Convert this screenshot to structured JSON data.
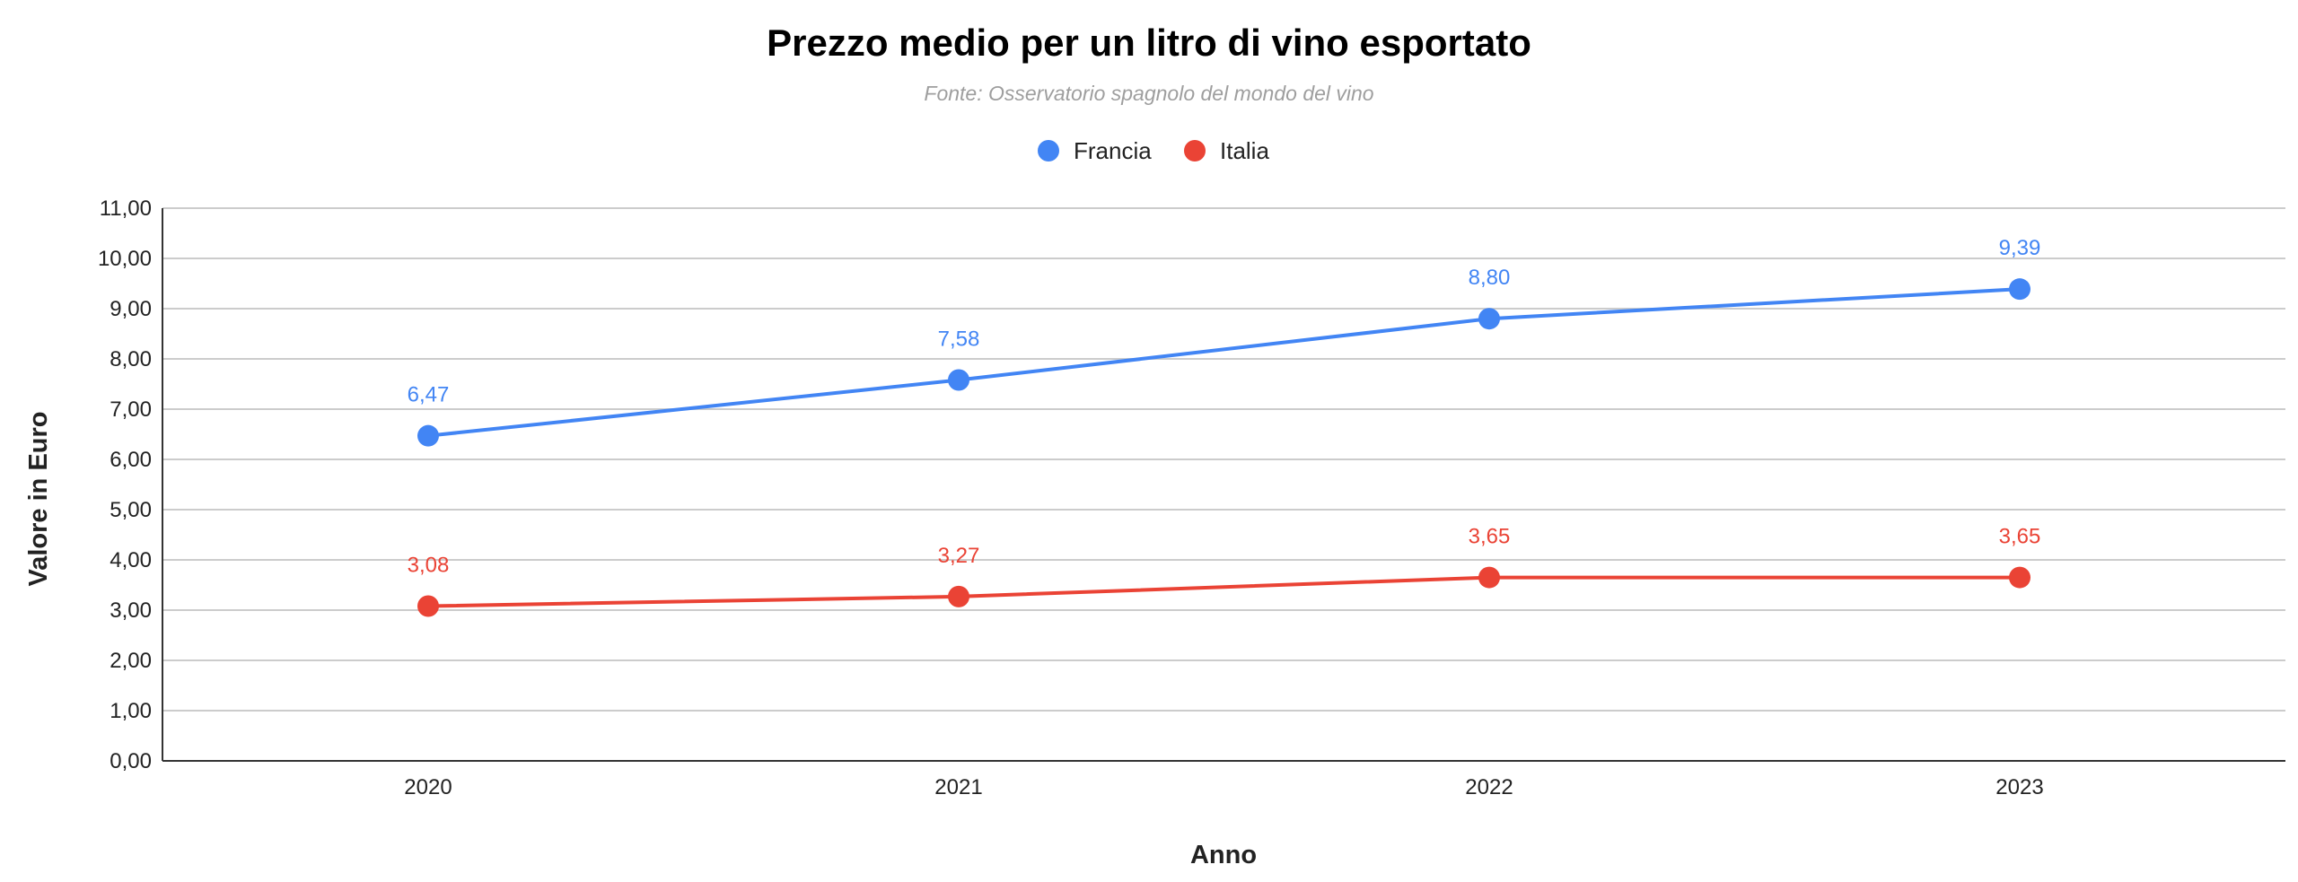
{
  "chart_data": {
    "type": "line",
    "title": "Prezzo medio per un litro di vino esportato",
    "subtitle": "Fonte: Osservatorio spagnolo del mondo del vino",
    "xlabel": "Anno",
    "ylabel": "Valore in Euro",
    "categories": [
      "2020",
      "2021",
      "2022",
      "2023"
    ],
    "ylim": [
      0,
      11
    ],
    "yticks": [
      0,
      1,
      2,
      3,
      4,
      5,
      6,
      7,
      8,
      9,
      10,
      11
    ],
    "ytick_labels": [
      "0,00",
      "1,00",
      "2,00",
      "3,00",
      "4,00",
      "5,00",
      "6,00",
      "7,00",
      "8,00",
      "9,00",
      "10,00",
      "11,00"
    ],
    "grid": true,
    "legend_position": "top-center",
    "series": [
      {
        "name": "Francia",
        "color": "#4285f4",
        "values": [
          6.47,
          7.58,
          8.8,
          9.39
        ],
        "labels": [
          "6,47",
          "7,58",
          "8,80",
          "9,39"
        ]
      },
      {
        "name": "Italia",
        "color": "#ea4335",
        "values": [
          3.08,
          3.27,
          3.65,
          3.65
        ],
        "labels": [
          "3,08",
          "3,27",
          "3,65",
          "3,65"
        ]
      }
    ]
  }
}
